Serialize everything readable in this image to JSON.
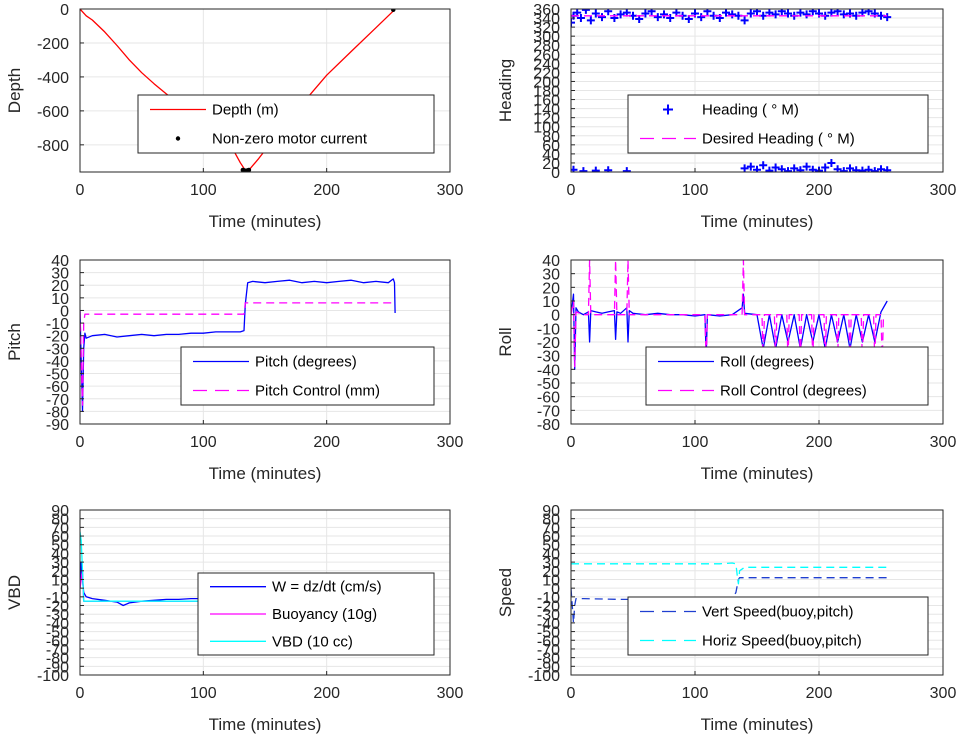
{
  "colors": {
    "red": "#ff0000",
    "blue": "#0000ff",
    "darkblue": "#1f3fd0",
    "magenta": "#ff00ff",
    "cyan": "#00ffff",
    "black": "#000000",
    "grid": "#e6e6e6",
    "axis": "#262626"
  },
  "chart_data": [
    {
      "id": "depth",
      "type": "line",
      "xlabel": "Time (minutes)",
      "ylabel": "Depth",
      "xlim": [
        0,
        300
      ],
      "ylim": [
        -960,
        0
      ],
      "xticks": [
        0,
        100,
        200,
        300
      ],
      "yticks": [
        0,
        -200,
        -400,
        -600,
        -800
      ],
      "grid": true,
      "legend_position": "lower-right",
      "series": [
        {
          "name": "Depth (m)",
          "style": "solid",
          "color": "red",
          "x": [
            0,
            5,
            10,
            20,
            30,
            40,
            50,
            60,
            70,
            80,
            90,
            100,
            110,
            120,
            125,
            130,
            134,
            138,
            145,
            160,
            180,
            200,
            220,
            240,
            255
          ],
          "y": [
            0,
            -40,
            -65,
            -135,
            -215,
            -300,
            -375,
            -440,
            -500,
            -555,
            -605,
            -660,
            -720,
            -790,
            -840,
            -905,
            -950,
            -940,
            -880,
            -740,
            -560,
            -390,
            -250,
            -110,
            -5
          ]
        },
        {
          "name": "Non-zero motor current",
          "style": "dots",
          "color": "black",
          "x": [
            132,
            133,
            134,
            135,
            136,
            137,
            254
          ],
          "y": [
            -948,
            -950,
            -952,
            -952,
            -950,
            -948,
            -5
          ]
        }
      ]
    },
    {
      "id": "heading",
      "type": "scatter",
      "xlabel": "Time (minutes)",
      "ylabel": "Heading",
      "xlim": [
        0,
        300
      ],
      "ylim": [
        0,
        360
      ],
      "xticks": [
        0,
        100,
        200,
        300
      ],
      "yticks": [
        0,
        20,
        40,
        60,
        80,
        100,
        120,
        140,
        160,
        180,
        200,
        220,
        240,
        260,
        280,
        300,
        320,
        340,
        360
      ],
      "grid": true,
      "legend_position": "lower-right",
      "series": [
        {
          "name": "Heading ( ° M)",
          "style": "plus",
          "color": "blue",
          "x": [
            0,
            2,
            5,
            8,
            12,
            16,
            20,
            25,
            30,
            35,
            40,
            45,
            50,
            55,
            60,
            65,
            70,
            75,
            80,
            85,
            90,
            95,
            100,
            105,
            110,
            115,
            120,
            125,
            130,
            135,
            140,
            145,
            150,
            155,
            160,
            165,
            170,
            175,
            180,
            185,
            190,
            195,
            200,
            205,
            210,
            215,
            220,
            225,
            230,
            235,
            240,
            245,
            250,
            255,
            2,
            10,
            20,
            30,
            45,
            140,
            145,
            150,
            155,
            160,
            165,
            170,
            175,
            180,
            185,
            190,
            195,
            200,
            205,
            210,
            215,
            220,
            225,
            230,
            235,
            240,
            245,
            250,
            255
          ],
          "y": [
            330,
            345,
            352,
            340,
            358,
            335,
            350,
            342,
            355,
            340,
            348,
            352,
            345,
            338,
            350,
            355,
            342,
            348,
            340,
            352,
            345,
            338,
            350,
            342,
            355,
            345,
            340,
            352,
            348,
            345,
            335,
            350,
            355,
            345,
            352,
            348,
            355,
            350,
            345,
            352,
            348,
            355,
            350,
            345,
            352,
            355,
            348,
            350,
            345,
            352,
            355,
            350,
            345,
            342,
            5,
            2,
            3,
            4,
            2,
            8,
            12,
            5,
            15,
            3,
            10,
            6,
            2,
            8,
            4,
            12,
            5,
            3,
            10,
            20,
            6,
            2,
            8,
            4,
            3,
            5,
            2,
            6,
            4
          ]
        },
        {
          "name": "Desired Heading ( ° M)",
          "style": "dash",
          "color": "magenta",
          "x": [
            0,
            255
          ],
          "y": [
            345,
            345
          ]
        }
      ]
    },
    {
      "id": "pitch",
      "type": "line",
      "xlabel": "Time (minutes)",
      "ylabel": "Pitch",
      "xlim": [
        0,
        300
      ],
      "ylim": [
        -90,
        40
      ],
      "xticks": [
        0,
        100,
        200,
        300
      ],
      "yticks": [
        40,
        30,
        20,
        10,
        0,
        -10,
        -20,
        -30,
        -40,
        -50,
        -60,
        -70,
        -80,
        -90
      ],
      "grid": true,
      "legend_position": "lower-right",
      "series": [
        {
          "name": "Pitch (degrees)",
          "style": "solid",
          "color": "blue",
          "x": [
            0,
            1,
            2,
            3,
            4,
            5,
            10,
            20,
            30,
            40,
            50,
            60,
            70,
            80,
            90,
            100,
            110,
            120,
            130,
            133,
            134,
            136,
            140,
            150,
            160,
            170,
            180,
            190,
            200,
            210,
            220,
            230,
            240,
            250,
            254,
            255,
            255.5
          ],
          "y": [
            0,
            -40,
            -80,
            -30,
            -18,
            -22,
            -20,
            -19,
            -21,
            -20,
            -19,
            -20,
            -19,
            -19,
            -18,
            -18,
            -17,
            -17,
            -17,
            -16,
            5,
            22,
            23,
            22,
            23,
            24,
            22,
            23,
            22,
            23,
            24,
            22,
            23,
            22,
            25,
            22,
            -2
          ]
        },
        {
          "name": "Pitch Control (mm)",
          "style": "dash",
          "color": "magenta",
          "x": [
            0,
            2,
            3,
            4,
            133,
            134,
            255
          ],
          "y": [
            0,
            -75,
            -10,
            -3,
            -3,
            6,
            6
          ]
        }
      ]
    },
    {
      "id": "roll",
      "type": "line",
      "xlabel": "Time (minutes)",
      "ylabel": "Roll",
      "xlim": [
        0,
        300
      ],
      "ylim": [
        -80,
        40
      ],
      "xticks": [
        0,
        100,
        200,
        300
      ],
      "yticks": [
        40,
        30,
        20,
        10,
        0,
        -10,
        -20,
        -30,
        -40,
        -50,
        -60,
        -70,
        -80
      ],
      "grid": true,
      "legend_position": "lower-right",
      "series": [
        {
          "name": "Roll (degrees)",
          "style": "solid",
          "color": "blue",
          "x": [
            0,
            2,
            3,
            4,
            6,
            10,
            14,
            15,
            16,
            20,
            25,
            30,
            35,
            36,
            37,
            40,
            45,
            46,
            47,
            50,
            60,
            70,
            80,
            90,
            100,
            108,
            109,
            110,
            120,
            130,
            138,
            139,
            140,
            150,
            155,
            160,
            165,
            170,
            175,
            180,
            185,
            190,
            195,
            200,
            205,
            210,
            215,
            220,
            225,
            230,
            235,
            240,
            245,
            250,
            255
          ],
          "y": [
            0,
            15,
            -40,
            5,
            2,
            0,
            2,
            -20,
            3,
            2,
            1,
            2,
            3,
            -18,
            2,
            1,
            5,
            -20,
            3,
            1,
            0,
            1,
            0,
            0,
            -1,
            0,
            -30,
            0,
            -1,
            0,
            5,
            15,
            1,
            0,
            -25,
            0,
            -25,
            0,
            -20,
            0,
            -25,
            0,
            -20,
            0,
            -25,
            0,
            -20,
            0,
            -25,
            0,
            -20,
            0,
            -20,
            2,
            10
          ]
        },
        {
          "name": "Roll Control (degrees)",
          "style": "dash",
          "color": "magenta",
          "x": [
            0,
            2,
            3,
            4,
            10,
            14,
            15,
            16,
            25,
            35,
            36,
            37,
            45,
            46,
            47,
            60,
            100,
            108,
            109,
            110,
            137,
            138,
            139,
            140,
            150,
            154,
            155,
            156,
            164,
            165,
            166,
            174,
            175,
            176,
            184,
            185,
            186,
            194,
            195,
            196,
            204,
            205,
            206,
            214,
            215,
            216,
            224,
            225,
            226,
            234,
            235,
            236,
            244,
            245,
            246,
            250,
            251,
            252
          ],
          "y": [
            0,
            10,
            -38,
            2,
            0,
            0,
            40,
            0,
            0,
            0,
            40,
            0,
            0,
            40,
            0,
            0,
            0,
            0,
            -35,
            0,
            0,
            0,
            40,
            0,
            0,
            0,
            -35,
            0,
            0,
            -35,
            0,
            0,
            -35,
            0,
            0,
            -35,
            0,
            0,
            -35,
            0,
            0,
            -35,
            0,
            0,
            -35,
            0,
            0,
            -35,
            0,
            0,
            -35,
            0,
            0,
            -35,
            0,
            0,
            -35,
            0
          ]
        }
      ]
    },
    {
      "id": "vbd",
      "type": "line",
      "xlabel": "Time (minutes)",
      "ylabel": "VBD",
      "xlim": [
        0,
        300
      ],
      "ylim": [
        -100,
        90
      ],
      "xticks": [
        0,
        100,
        200,
        300
      ],
      "yticks": [
        90,
        80,
        70,
        60,
        50,
        40,
        30,
        20,
        10,
        0,
        -10,
        -20,
        -30,
        -40,
        -50,
        -60,
        -70,
        -80,
        -90,
        -100
      ],
      "grid": true,
      "legend_position": "lower-right",
      "series": [
        {
          "name": "W = dz/dt (cm/s)",
          "style": "solid",
          "color": "blue",
          "x": [
            0,
            1,
            2,
            3,
            5,
            10,
            20,
            30,
            35,
            40,
            50,
            60,
            70,
            80,
            90,
            100,
            110,
            120,
            130,
            133,
            134,
            136,
            140,
            150,
            160,
            170,
            180,
            190,
            200,
            210,
            220,
            230,
            240,
            250,
            255
          ],
          "y": [
            0,
            30,
            10,
            -5,
            -10,
            -12,
            -14,
            -16,
            -20,
            -17,
            -15,
            -14,
            -13,
            -13,
            -12,
            -12,
            -12,
            -11,
            -11,
            -11,
            5,
            12,
            13,
            12,
            13,
            12,
            13,
            12,
            13,
            12,
            12,
            13,
            12,
            13,
            2
          ]
        },
        {
          "name": "Buoyancy (10g)",
          "style": "solid",
          "color": "magenta",
          "x": [
            0,
            2,
            3,
            133,
            134,
            255
          ],
          "y": [
            0,
            20,
            -15,
            -15,
            15,
            15
          ]
        },
        {
          "name": "VBD (10 cc)",
          "style": "solid",
          "color": "cyan",
          "x": [
            0,
            1,
            2,
            3,
            133,
            134,
            135,
            255
          ],
          "y": [
            65,
            55,
            20,
            -15,
            -15,
            5,
            15,
            15
          ]
        }
      ]
    },
    {
      "id": "speed",
      "type": "line",
      "xlabel": "Time (minutes)",
      "ylabel": "Speed",
      "xlim": [
        0,
        300
      ],
      "ylim": [
        -100,
        90
      ],
      "xticks": [
        0,
        100,
        200,
        300
      ],
      "yticks": [
        90,
        80,
        70,
        60,
        50,
        40,
        30,
        20,
        10,
        0,
        -10,
        -20,
        -30,
        -40,
        -50,
        -60,
        -70,
        -80,
        -90,
        -100
      ],
      "grid": true,
      "legend_position": "lower-right",
      "series": [
        {
          "name": "Vert Speed(buoy,pitch)",
          "style": "dash",
          "color": "darkblue",
          "x": [
            0,
            2,
            3,
            4,
            10,
            40,
            80,
            120,
            130,
            133,
            135,
            136,
            140,
            180,
            220,
            255
          ],
          "y": [
            0,
            -40,
            -20,
            -12,
            -12,
            -13,
            -13,
            -12,
            -12,
            -5,
            10,
            12,
            12,
            12,
            12,
            12
          ]
        },
        {
          "name": "Horiz Speed(buoy,pitch)",
          "style": "dash",
          "color": "cyan",
          "x": [
            0,
            3,
            10,
            60,
            120,
            130,
            133,
            134,
            135,
            136,
            140,
            180,
            220,
            255
          ],
          "y": [
            28,
            28,
            28,
            28,
            28,
            29,
            28,
            15,
            5,
            20,
            24,
            24,
            24,
            24
          ]
        }
      ]
    }
  ]
}
